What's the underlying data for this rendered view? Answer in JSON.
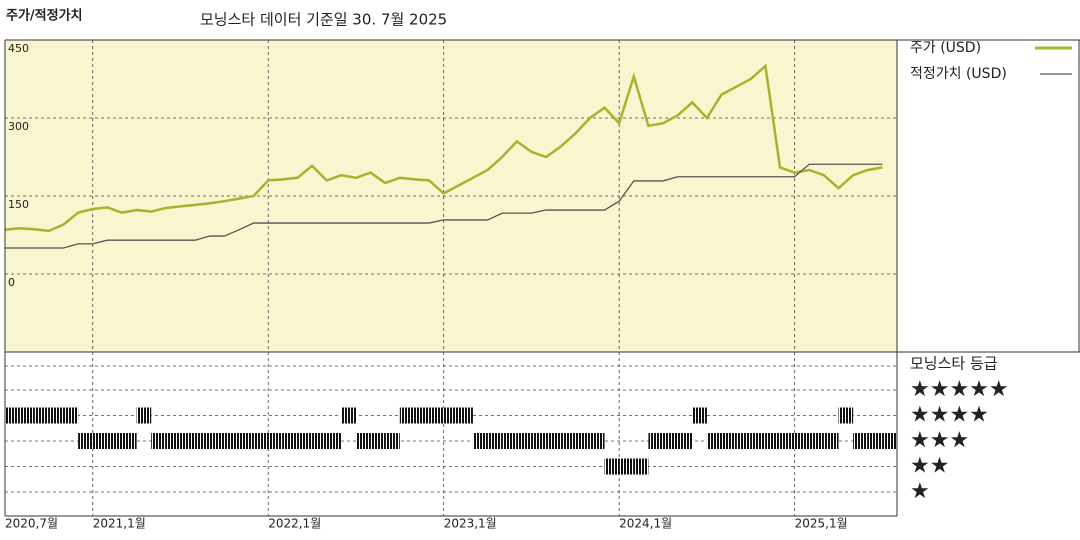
{
  "chart_data": [
    {
      "type": "line",
      "title": "주가/적정가치",
      "subtitle": "모닝스타 데이터 기준일 30. 7월 2025",
      "x": [
        "2020-07",
        "2020-08",
        "2020-09",
        "2020-10",
        "2020-11",
        "2020-12",
        "2021-01",
        "2021-02",
        "2021-03",
        "2021-04",
        "2021-05",
        "2021-06",
        "2021-07",
        "2021-08",
        "2021-09",
        "2021-10",
        "2021-11",
        "2021-12",
        "2022-01",
        "2022-02",
        "2022-03",
        "2022-04",
        "2022-05",
        "2022-06",
        "2022-07",
        "2022-08",
        "2022-09",
        "2022-10",
        "2022-11",
        "2022-12",
        "2023-01",
        "2023-02",
        "2023-03",
        "2023-04",
        "2023-05",
        "2023-06",
        "2023-07",
        "2023-08",
        "2023-09",
        "2023-10",
        "2023-11",
        "2023-12",
        "2024-01",
        "2024-02",
        "2024-03",
        "2024-04",
        "2024-05",
        "2024-06",
        "2024-07",
        "2024-08",
        "2024-09",
        "2024-10",
        "2024-11",
        "2024-12",
        "2025-01",
        "2025-02",
        "2025-03",
        "2025-04",
        "2025-05",
        "2025-06",
        "2025-07"
      ],
      "series": [
        {
          "name": "주가 (USD)",
          "color": "#a9b22c",
          "values": [
            85,
            88,
            86,
            83,
            95,
            118,
            125,
            128,
            118,
            123,
            120,
            127,
            130,
            133,
            136,
            140,
            145,
            150,
            180,
            182,
            185,
            208,
            180,
            190,
            185,
            195,
            175,
            185,
            182,
            180,
            155,
            170,
            185,
            200,
            225,
            255,
            235,
            225,
            245,
            270,
            300,
            320,
            290,
            380,
            285,
            290,
            305,
            330,
            300,
            345,
            360,
            375,
            400,
            205,
            195,
            200,
            190,
            165,
            190,
            200,
            205
          ]
        },
        {
          "name": "적정가치 (USD)",
          "color": "#555555",
          "values": [
            50,
            50,
            50,
            50,
            50,
            58,
            58,
            65,
            65,
            65,
            65,
            65,
            65,
            65,
            73,
            73,
            85,
            98,
            98,
            98,
            98,
            98,
            98,
            98,
            98,
            98,
            98,
            98,
            98,
            98,
            104,
            104,
            104,
            104,
            117,
            117,
            117,
            123,
            123,
            123,
            123,
            123,
            140,
            179,
            179,
            179,
            187,
            187,
            187,
            187,
            187,
            187,
            187,
            187,
            187,
            211,
            211,
            211,
            211,
            211,
            211
          ]
        }
      ],
      "xlim": [
        "2020-07",
        "2025-08"
      ],
      "xticks": [
        {
          "value": "2020-07",
          "label": "2020,7월"
        },
        {
          "value": "2021-01",
          "label": "2021,1월"
        },
        {
          "value": "2022-01",
          "label": "2022,1월"
        },
        {
          "value": "2023-01",
          "label": "2023,1월"
        },
        {
          "value": "2024-01",
          "label": "2024,1월"
        },
        {
          "value": "2025-01",
          "label": "2025,1월"
        }
      ],
      "ylim": [
        -150,
        450
      ],
      "yticks": [
        0,
        150,
        300,
        450
      ],
      "grid": true,
      "background": "#f8f5cf"
    },
    {
      "type": "rating",
      "title": "모닝스타 등급",
      "categories": [
        "★",
        "★★",
        "★★★",
        "★★★★",
        "★★★★★"
      ],
      "x": [
        "2020-07",
        "2020-08",
        "2020-09",
        "2020-10",
        "2020-11",
        "2020-12",
        "2021-01",
        "2021-02",
        "2021-03",
        "2021-04",
        "2021-05",
        "2021-06",
        "2021-07",
        "2021-08",
        "2021-09",
        "2021-10",
        "2021-11",
        "2021-12",
        "2022-01",
        "2022-02",
        "2022-03",
        "2022-04",
        "2022-05",
        "2022-06",
        "2022-07",
        "2022-08",
        "2022-09",
        "2022-10",
        "2022-11",
        "2022-12",
        "2023-01",
        "2023-02",
        "2023-03",
        "2023-04",
        "2023-05",
        "2023-06",
        "2023-07",
        "2023-08",
        "2023-09",
        "2023-10",
        "2023-11",
        "2023-12",
        "2024-01",
        "2024-02",
        "2024-03",
        "2024-04",
        "2024-05",
        "2024-06",
        "2024-07",
        "2024-08",
        "2024-09",
        "2024-10",
        "2024-11",
        "2024-12",
        "2025-01",
        "2025-02",
        "2025-03",
        "2025-04",
        "2025-05",
        "2025-06",
        "2025-07"
      ],
      "values": [
        4,
        4,
        4,
        4,
        4,
        3,
        3,
        3,
        3,
        4,
        3,
        3,
        3,
        3,
        3,
        3,
        3,
        3,
        3,
        3,
        3,
        3,
        3,
        4,
        3,
        3,
        3,
        4,
        4,
        4,
        4,
        4,
        3,
        3,
        3,
        3,
        3,
        3,
        3,
        3,
        3,
        2,
        2,
        2,
        3,
        3,
        3,
        4,
        3,
        3,
        3,
        3,
        3,
        3,
        3,
        3,
        3,
        4,
        3,
        3,
        3
      ],
      "color": "#111111"
    }
  ]
}
